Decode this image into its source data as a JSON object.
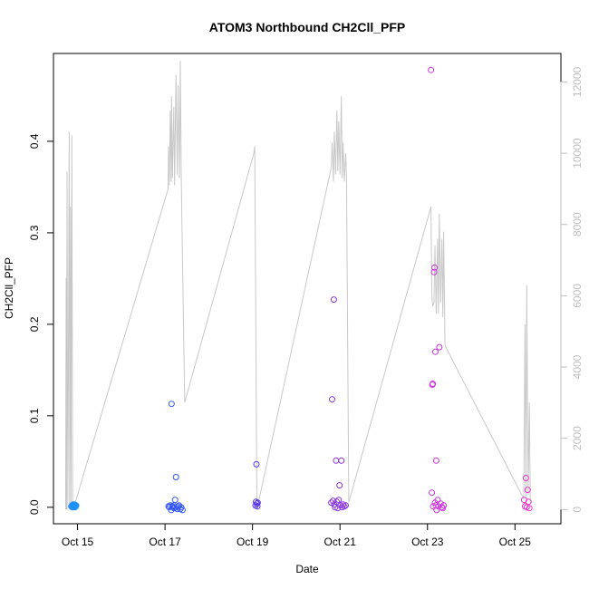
{
  "chart_data": {
    "type": "scatter",
    "title": "ATOM3 Northbound CH2Cll_PFP",
    "xlabel": "Date",
    "ylabel": "CH2Cll_PFP",
    "x_ticks": [
      {
        "label": "Oct 15",
        "value": 14.85
      },
      {
        "label": "Oct 17",
        "value": 16.85
      },
      {
        "label": "Oct 19",
        "value": 18.85
      },
      {
        "label": "Oct 21",
        "value": 20.85
      },
      {
        "label": "Oct 23",
        "value": 22.85
      },
      {
        "label": "Oct 25",
        "value": 24.85
      }
    ],
    "xlim": [
      14.3,
      25.9
    ],
    "ylim": [
      -0.018,
      0.496
    ],
    "y_ticks": [
      0.0,
      0.1,
      0.2,
      0.3,
      0.4
    ],
    "right_axis": {
      "ticks": [
        0,
        2000,
        4000,
        6000,
        8000,
        10000,
        12000
      ],
      "ylim": [
        -400,
        12800
      ],
      "color": "#bfbfbf"
    },
    "altitude_line": {
      "color": "#c8c8c8",
      "x": [
        14.58,
        14.59,
        14.6,
        14.61,
        14.63,
        14.66,
        14.67,
        14.69,
        14.7,
        14.72,
        14.74,
        14.8,
        16.92,
        16.93,
        16.95,
        16.97,
        16.99,
        17.0,
        17.02,
        17.05,
        17.07,
        17.1,
        17.13,
        17.15,
        17.18,
        17.2,
        17.22,
        17.3,
        18.88,
        18.9,
        18.92,
        18.95,
        20.65,
        20.67,
        20.7,
        20.72,
        20.75,
        20.78,
        20.8,
        20.82,
        20.85,
        20.88,
        20.9,
        20.92,
        20.95,
        20.98,
        21.0,
        21.05,
        22.93,
        22.95,
        22.97,
        23.0,
        23.02,
        23.05,
        23.08,
        23.1,
        23.12,
        23.15,
        23.18,
        23.2,
        23.22,
        23.25,
        25.05,
        25.08,
        25.1,
        25.12,
        25.15,
        25.18,
        25.2,
        25.22
      ],
      "y": [
        0,
        6500,
        0,
        9500,
        0,
        10600,
        0,
        8500,
        0,
        10500,
        0,
        200,
        9000,
        10200,
        9100,
        11200,
        9200,
        11600,
        9300,
        11300,
        9100,
        12200,
        9400,
        11900,
        9300,
        12600,
        9400,
        3000,
        10000,
        10200,
        6500,
        0,
        9600,
        10300,
        9200,
        10600,
        9400,
        11200,
        9500,
        10900,
        9400,
        11600,
        9300,
        10300,
        9200,
        10000,
        9400,
        200,
        8500,
        6000,
        5700,
        5800,
        7400,
        5500,
        7600,
        5500,
        8300,
        5800,
        7600,
        5400,
        7800,
        4600,
        300,
        5200,
        300,
        6300,
        400,
        3000,
        200,
        200
      ]
    },
    "series": [
      {
        "color": "#1e90ff",
        "x": [
          14.71,
          14.72,
          14.73,
          14.74,
          14.75,
          14.76,
          14.77,
          14.77,
          14.78,
          14.79,
          14.8,
          14.81,
          14.82
        ],
        "y": [
          0.001,
          0.002,
          0.0,
          0.001,
          0.003,
          0.0,
          0.002,
          0.001,
          0.003,
          0.0,
          0.002,
          0.001,
          0.002
        ]
      },
      {
        "color": "#3355ff",
        "x": [
          16.93,
          16.95,
          16.97,
          16.99,
          17.0,
          17.02,
          17.03,
          17.05,
          17.06,
          17.08,
          17.1,
          17.12,
          17.13,
          17.15,
          17.17,
          17.2,
          17.22,
          17.25
        ],
        "y": [
          0.001,
          0.0,
          0.002,
          -0.003,
          0.113,
          0.001,
          0.0,
          0.002,
          -0.001,
          0.008,
          0.033,
          0.0,
          -0.002,
          0.001,
          0.002,
          -0.002,
          0.0,
          -0.003
        ]
      },
      {
        "color": "#5533ee",
        "x": [
          18.92,
          18.93,
          18.94,
          18.95,
          18.96,
          18.97
        ],
        "y": [
          0.002,
          0.006,
          0.047,
          0.004,
          0.001,
          0.005
        ]
      },
      {
        "color": "#8833dd",
        "x": [
          20.65,
          20.67,
          20.69,
          20.71,
          20.72,
          20.74,
          20.76,
          20.78,
          20.8,
          20.82,
          20.84,
          20.86,
          20.88,
          20.9,
          20.92,
          20.95,
          20.98
        ],
        "y": [
          0.005,
          0.118,
          0.007,
          0.227,
          0.003,
          0.0,
          0.051,
          0.006,
          -0.001,
          0.008,
          0.024,
          0.002,
          0.051,
          0.0,
          0.003,
          0.001,
          0.002
        ]
      },
      {
        "color": "#cc33dd",
        "x": [
          22.93,
          22.95,
          22.96,
          22.97,
          22.98,
          23.0,
          23.01,
          23.02,
          23.03,
          23.04,
          23.05,
          23.06,
          23.08,
          23.1,
          23.12,
          23.15,
          23.18,
          23.2,
          23.22
        ],
        "y": [
          0.478,
          0.016,
          0.134,
          0.135,
          0.001,
          0.257,
          0.262,
          0.005,
          0.17,
          0.002,
          0.051,
          -0.003,
          0.008,
          0.001,
          0.175,
          0.004,
          0.0,
          -0.001,
          0.002
        ]
      },
      {
        "color": "#ee33cc",
        "x": [
          25.06,
          25.08,
          25.1,
          25.12,
          25.14,
          25.16,
          25.18
        ],
        "y": [
          0.008,
          0.001,
          0.032,
          0.0,
          0.019,
          0.006,
          -0.001
        ]
      }
    ]
  }
}
